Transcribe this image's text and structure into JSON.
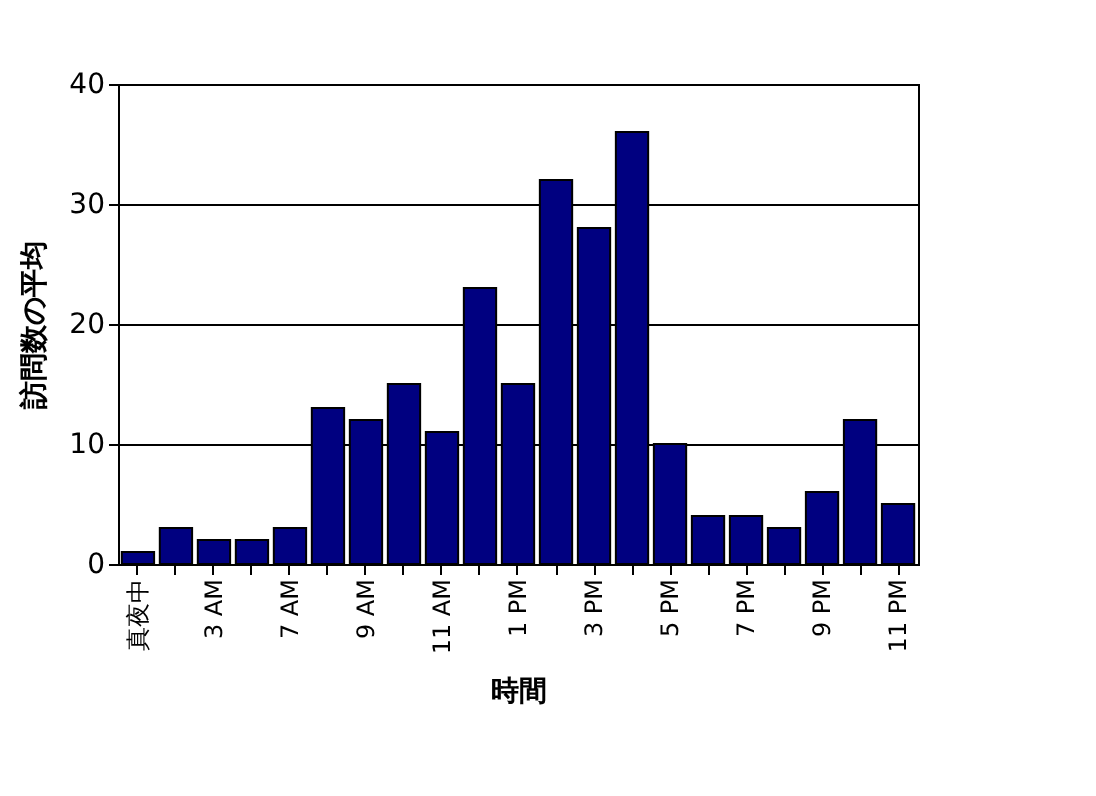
{
  "chart_data": {
    "type": "bar",
    "xlabel": "時間",
    "ylabel": "訪問数の平均",
    "categories": [
      "真夜中",
      null,
      "3 AM",
      null,
      "7 AM",
      null,
      "9 AM",
      null,
      "11 AM",
      null,
      "1 PM",
      null,
      "3 PM",
      null,
      "5 PM",
      null,
      "7 PM",
      null,
      "9 PM",
      null,
      "11 PM"
    ],
    "values": [
      1,
      3,
      2,
      2,
      3,
      13,
      12,
      15,
      11,
      23,
      15,
      32,
      28,
      36,
      10,
      4,
      4,
      3,
      6,
      12,
      5
    ],
    "color": "#000080",
    "ylim": [
      0,
      40
    ],
    "yticks": [
      0,
      10,
      20,
      30,
      40
    ],
    "grid": "y"
  }
}
